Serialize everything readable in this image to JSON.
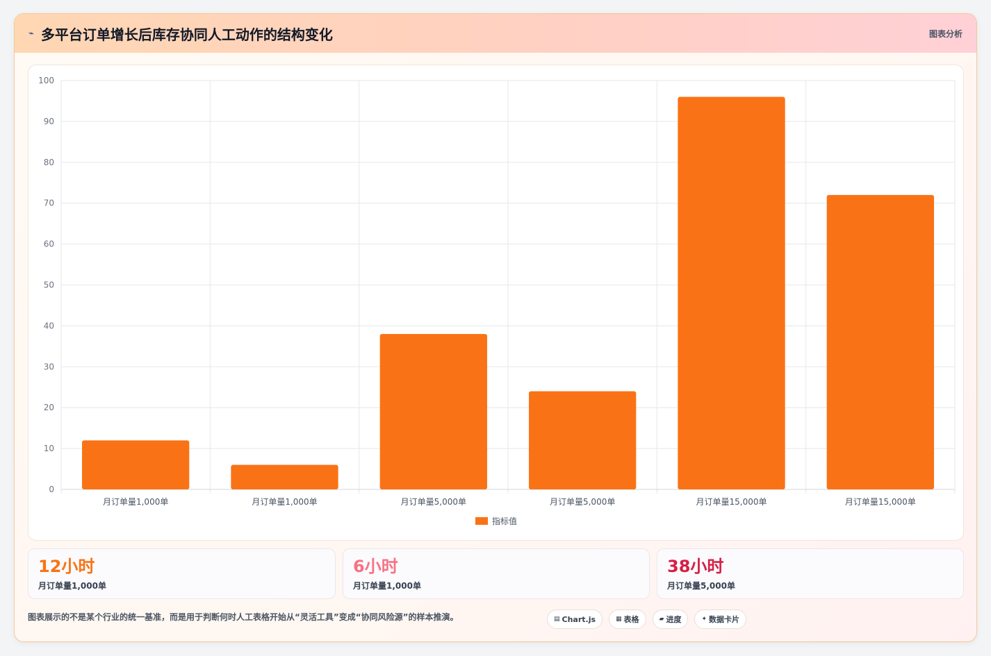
{
  "header": {
    "icon": "chart-line-icon",
    "title": "多平台订单增长后库存协同人工动作的结构变化",
    "tag": "图表分析"
  },
  "chart_data": {
    "type": "bar",
    "title": "",
    "xlabel": "",
    "ylabel": "",
    "categories": [
      "月订单量1,000单",
      "月订单量1,000单",
      "月订单量5,000单",
      "月订单量5,000单",
      "月订单量15,000单",
      "月订单量15,000单"
    ],
    "series": [
      {
        "name": "指标值",
        "values": [
          12,
          6,
          38,
          24,
          96,
          72
        ],
        "color": "#f97316"
      }
    ],
    "ylim": [
      0,
      100
    ],
    "yticks": [
      0,
      10,
      20,
      30,
      40,
      50,
      60,
      70,
      80,
      90,
      100
    ],
    "grid": true,
    "legend": "bottom"
  },
  "stats": [
    {
      "value": "12小时",
      "label": "月订单量1,000单",
      "color": "#f97316"
    },
    {
      "value": "6小时",
      "label": "月订单量1,000单",
      "color": "#f87185"
    },
    {
      "value": "38小时",
      "label": "月订单量5,000单",
      "color": "#d61f45"
    }
  ],
  "footnote": "图表展示的不是某个行业的统一基准，而是用于判断何时人工表格开始从“灵活工具”变成“协同风险源”的样本推演。",
  "chips": [
    {
      "icon": "chart-icon",
      "glyph": "▤",
      "label": "Chart.js"
    },
    {
      "icon": "table-icon",
      "glyph": "▦",
      "label": "表格"
    },
    {
      "icon": "progress-icon",
      "glyph": "▰",
      "label": "进度"
    },
    {
      "icon": "sparkle-icon",
      "glyph": "✦",
      "label": "数据卡片"
    }
  ]
}
